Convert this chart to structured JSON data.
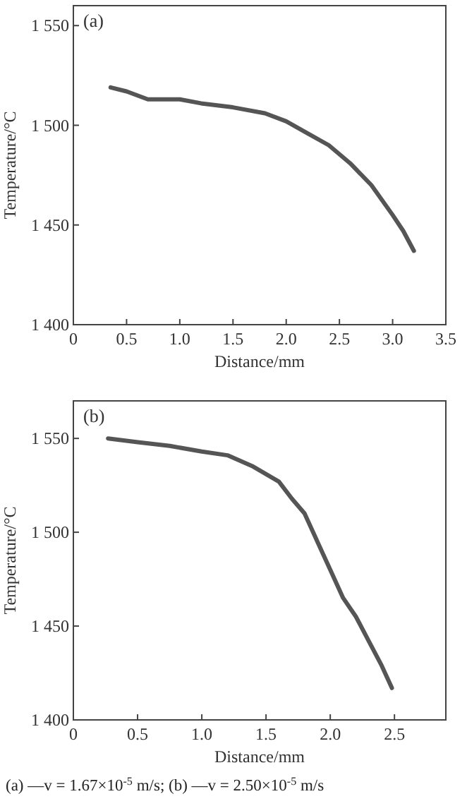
{
  "chart_data": [
    {
      "type": "line",
      "title": "(a)",
      "xlabel": "Distance/mm",
      "ylabel": "Temperature/°C",
      "xlim": [
        0,
        3.5
      ],
      "ylim": [
        1400,
        1560
      ],
      "xticks": [
        0,
        0.5,
        {
          "value": 1,
          "label": "1.0"
        },
        1.5,
        {
          "value": 2,
          "label": "2.0"
        },
        2.5,
        {
          "value": 3,
          "label": "3.0"
        },
        3.5
      ],
      "yticks": [
        {
          "value": 1400,
          "label": "1 400"
        },
        {
          "value": 1450,
          "label": "1 450"
        },
        {
          "value": 1500,
          "label": "1 500"
        },
        {
          "value": 1550,
          "label": "1 550"
        }
      ],
      "grid": false,
      "series": [
        {
          "color": "#555555",
          "x": [
            0.35,
            0.5,
            0.7,
            0.85,
            1.0,
            1.2,
            1.5,
            1.8,
            2.0,
            2.2,
            2.4,
            2.6,
            2.8,
            3.0,
            3.1,
            3.2
          ],
          "values": [
            1519,
            1517,
            1513,
            1513,
            1513,
            1511,
            1509,
            1506,
            1502,
            1496,
            1490,
            1481,
            1470,
            1455,
            1447,
            1437
          ]
        }
      ]
    },
    {
      "type": "line",
      "title": "(b)",
      "xlabel": "Distance/mm",
      "ylabel": "Temperature/°C",
      "xlim": [
        0,
        2.9
      ],
      "ylim": [
        1400,
        1570
      ],
      "xticks": [
        0,
        0.5,
        {
          "value": 1,
          "label": "1.0"
        },
        1.5,
        {
          "value": 2,
          "label": "2.0"
        },
        2.5
      ],
      "yticks": [
        {
          "value": 1400,
          "label": "1 400"
        },
        {
          "value": 1450,
          "label": "1 450"
        },
        {
          "value": 1500,
          "label": "1 500"
        },
        {
          "value": 1550,
          "label": "1 550"
        }
      ],
      "grid": false,
      "annotations": [
        "(a) —v = 1.67×10$^{-5}$ m/s; (b) —v = 2.50×10$^{-5}$ m/s"
      ],
      "series": [
        {
          "color": "#555555",
          "x": [
            0.27,
            0.5,
            0.75,
            1.0,
            1.2,
            1.4,
            1.6,
            1.7,
            1.8,
            1.9,
            2.0,
            2.1,
            2.2,
            2.3,
            2.4,
            2.48
          ],
          "values": [
            1550,
            1548,
            1546,
            1543,
            1541,
            1535,
            1527,
            1518,
            1510,
            1495,
            1480,
            1465,
            1455,
            1442,
            1429,
            1417
          ]
        }
      ]
    }
  ]
}
